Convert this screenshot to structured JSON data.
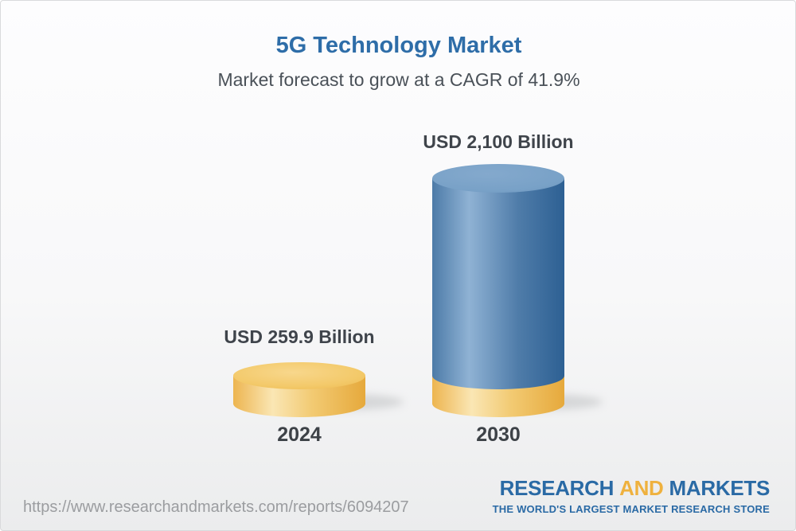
{
  "header": {
    "title": "5G Technology Market",
    "subtitle": "Market forecast to grow at a CAGR of 41.9%"
  },
  "chart_data": {
    "type": "bar",
    "subtype": "3d-cylinder-infographic",
    "categories": [
      "2024",
      "2030"
    ],
    "values": [
      259.9,
      2100
    ],
    "unit": "USD Billion",
    "value_labels": [
      "USD 259.9 Billion",
      "USD 2,100 Billion"
    ],
    "title": "5G Technology Market",
    "subtitle": "Market forecast to grow at a CAGR of 41.9%",
    "cagr_percent": 41.9,
    "legend": "none",
    "grid": false,
    "axes": "none",
    "layout_note": "2030 cylinder stacked: yellow base segment equals 2024 value, blue segment on top",
    "colors": {
      "bar_2024": "#F2C464",
      "bar_2030": "#4E7CA9",
      "bar_2030_base": "#F2C464",
      "title_blue": "#2E6DA8",
      "label_dark": "#3F444B"
    }
  },
  "footer": {
    "source_url": "https://www.researchandmarkets.com/reports/6094207",
    "logo": {
      "word1": "RESEARCH",
      "word2": "AND",
      "word3": "MARKETS",
      "tagline": "THE WORLD'S LARGEST MARKET RESEARCH STORE",
      "blue": "#2A6AA5",
      "yellow": "#EFB13E"
    }
  }
}
